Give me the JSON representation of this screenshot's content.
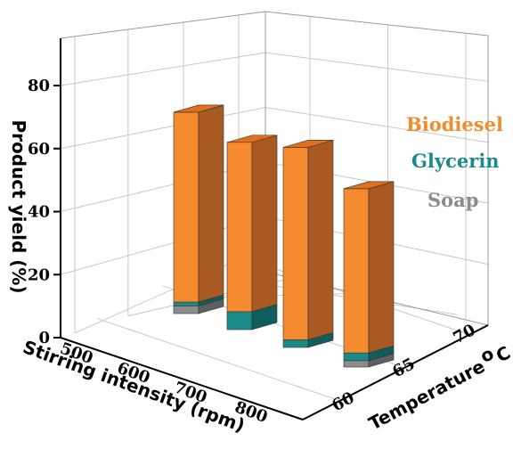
{
  "chart_data": {
    "type": "bar",
    "variant": "3d-stacked",
    "ylabel": "Product yield (%)",
    "xlabel": "Stirring intensity (rpm)",
    "zlabel": "Temperature °C",
    "zlabel_degree_text": "o",
    "zlabel_main_text": "Temperature",
    "zlabel_unit_text": "C",
    "y_ticks": [
      "0",
      "20",
      "40",
      "60",
      "80"
    ],
    "x_ticks": [
      "500",
      "600",
      "700",
      "800"
    ],
    "z_ticks": [
      "60",
      "65",
      "70"
    ],
    "ylim": [
      0,
      95
    ],
    "grid": true,
    "legend_position": "right",
    "series": [
      {
        "name": "Soap",
        "color": "#8c8c8c",
        "values": [
          3,
          0,
          0,
          2.5
        ]
      },
      {
        "name": "Glycerin",
        "color": "#1a8a8a",
        "values": [
          1.5,
          7,
          3,
          3
        ]
      },
      {
        "name": "Biodiesel",
        "color": "#f58a2e",
        "values": [
          74,
          66,
          75,
          64
        ]
      }
    ],
    "bars": [
      {
        "stirring_rpm": "500",
        "temperature": "65"
      },
      {
        "stirring_rpm": "600",
        "temperature": "65"
      },
      {
        "stirring_rpm": "700",
        "temperature": "65"
      },
      {
        "stirring_rpm": "800",
        "temperature": "65"
      }
    ]
  }
}
